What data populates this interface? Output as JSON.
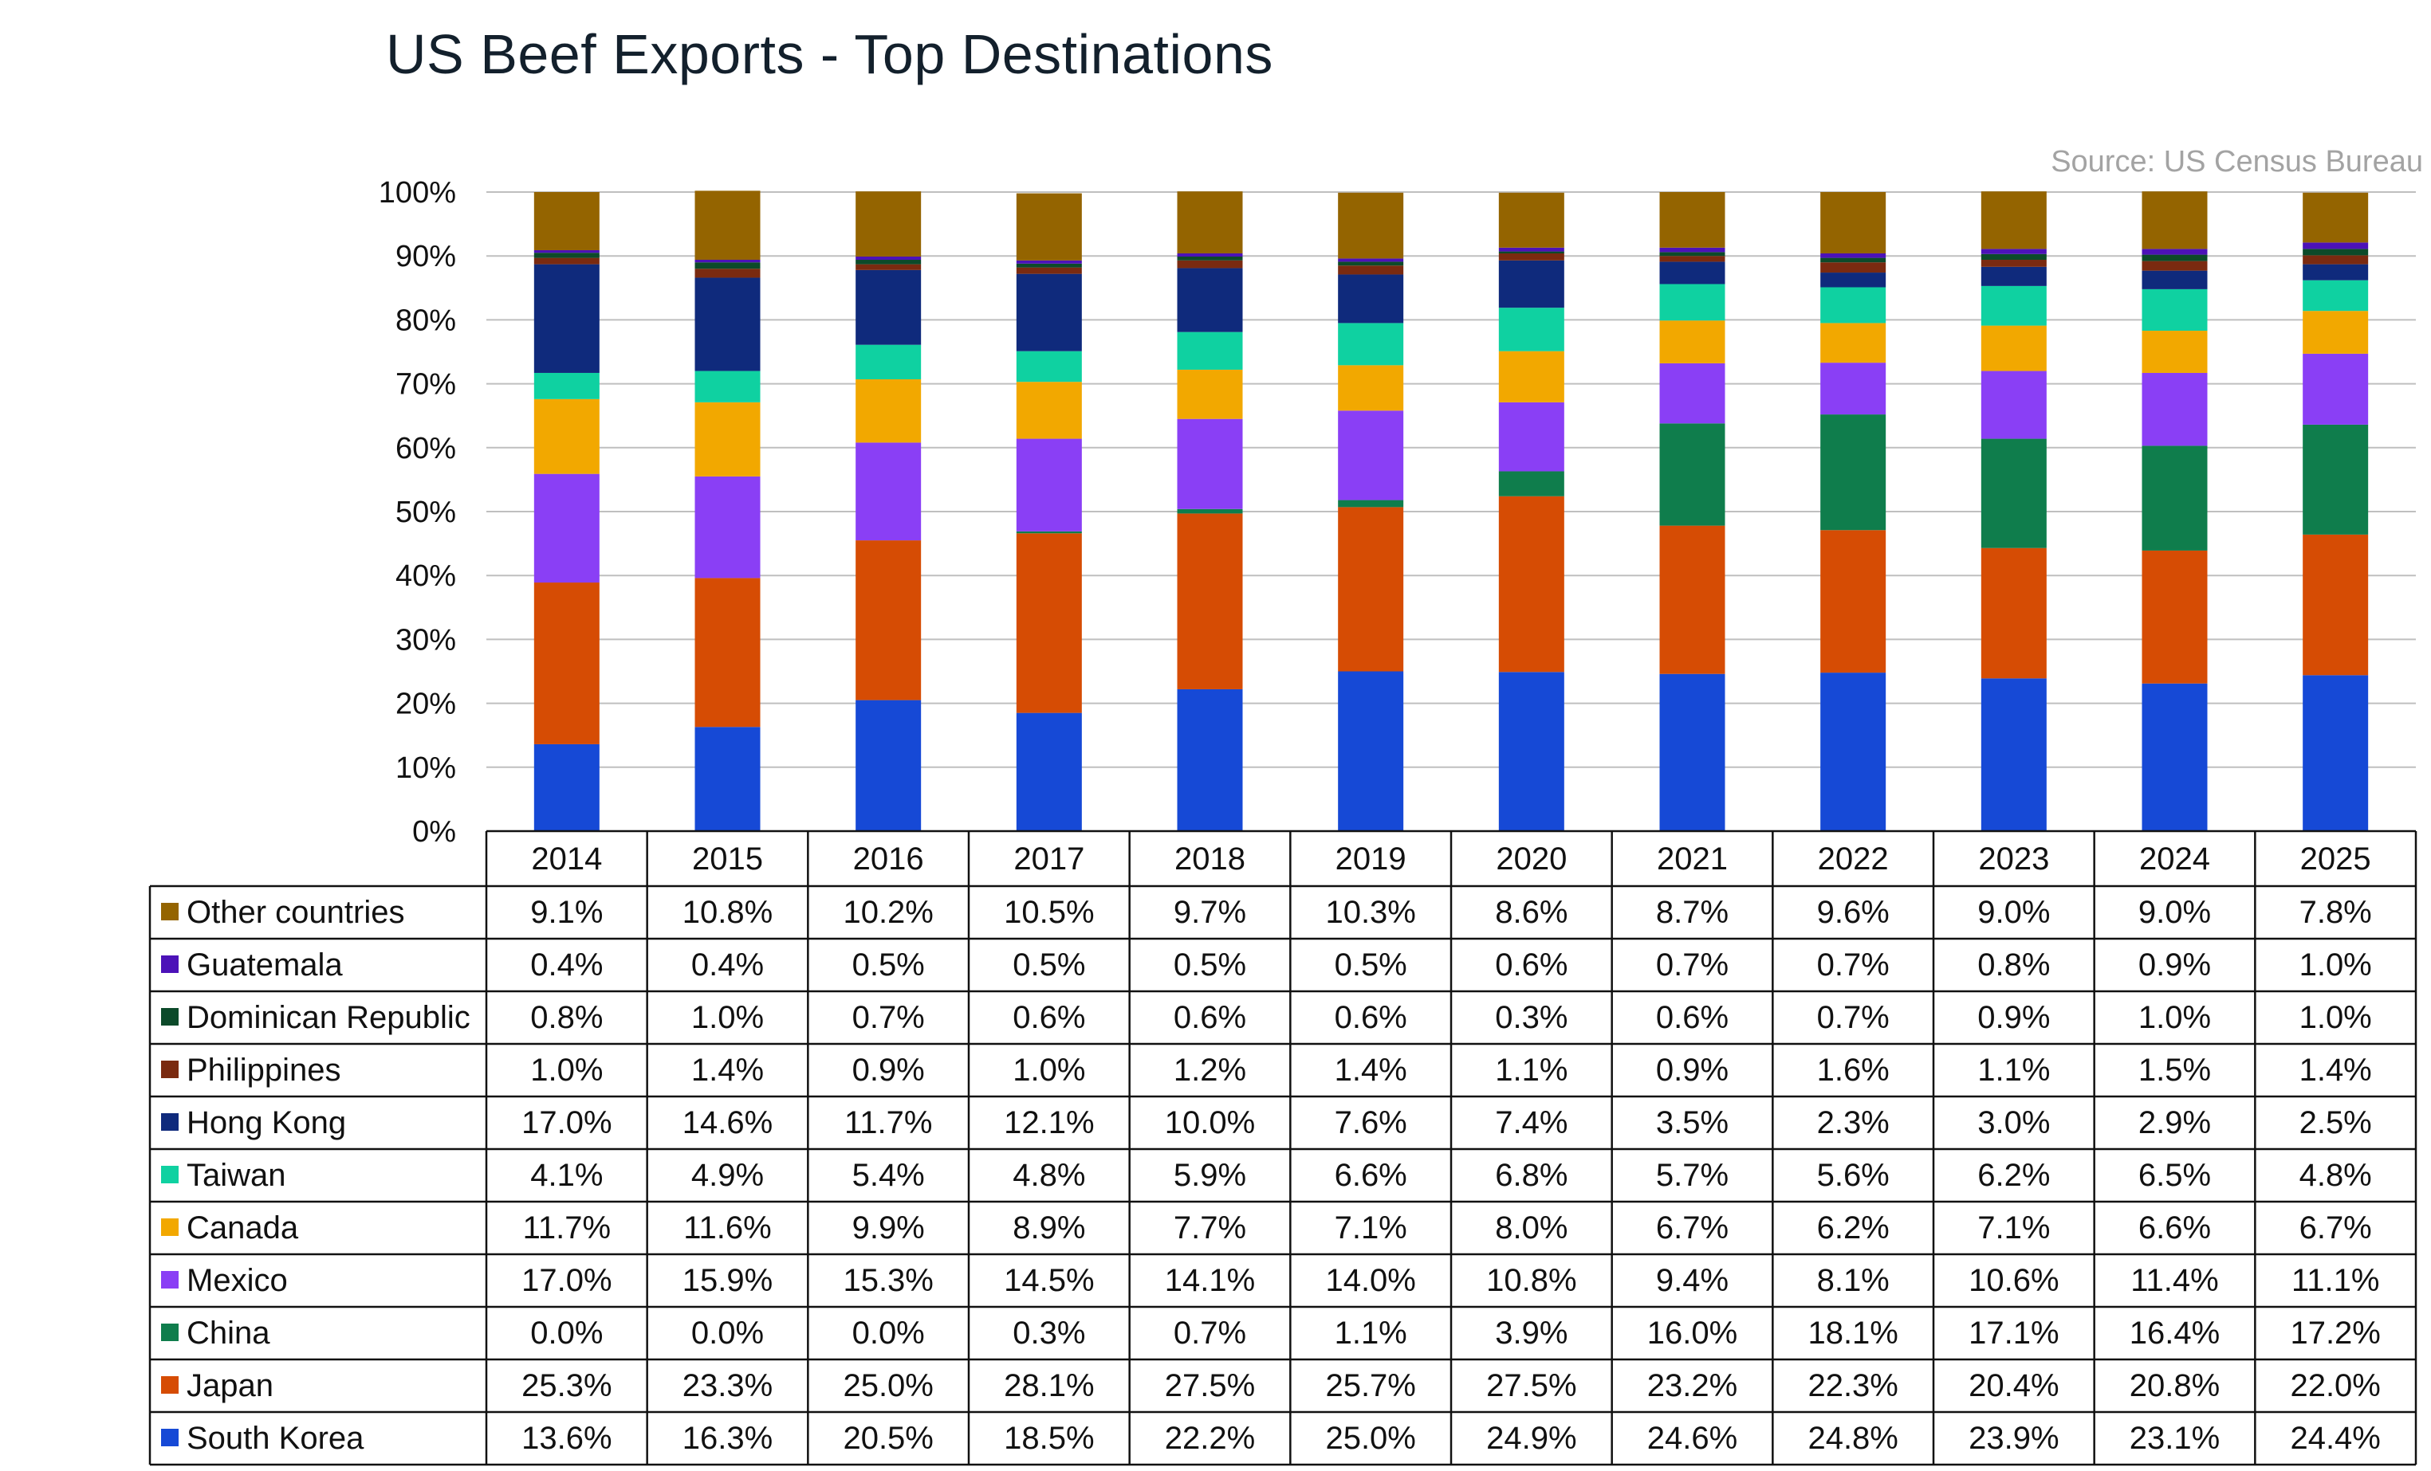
{
  "title": "US Beef Exports - Top Destinations",
  "source": "Source: US Census Bureau",
  "chart_data": {
    "type": "bar",
    "stacked": true,
    "normalized": true,
    "title": "US Beef Exports - Top Destinations",
    "source": "Source: US Census Bureau",
    "categories": [
      "2014",
      "2015",
      "2016",
      "2017",
      "2018",
      "2019",
      "2020",
      "2021",
      "2022",
      "2023",
      "2024",
      "2025"
    ],
    "ylim": [
      0,
      100
    ],
    "yticks": [
      "0%",
      "10%",
      "20%",
      "30%",
      "40%",
      "50%",
      "60%",
      "70%",
      "80%",
      "90%",
      "100%"
    ],
    "grid": true,
    "legend": "data table below chart",
    "series": [
      {
        "name": "South Korea",
        "color": "#1649d6",
        "values": [
          13.6,
          16.3,
          20.5,
          18.5,
          22.2,
          25.0,
          24.9,
          24.6,
          24.8,
          23.9,
          23.1,
          24.4
        ],
        "labels": [
          "13.6%",
          "16.3%",
          "20.5%",
          "18.5%",
          "22.2%",
          "25.0%",
          "24.9%",
          "24.6%",
          "24.8%",
          "23.9%",
          "23.1%",
          "24.4%"
        ]
      },
      {
        "name": "Japan",
        "color": "#d64c04",
        "values": [
          25.3,
          23.3,
          25.0,
          28.1,
          27.5,
          25.7,
          27.5,
          23.2,
          22.3,
          20.4,
          20.8,
          22.0
        ],
        "labels": [
          "25.3%",
          "23.3%",
          "25.0%",
          "28.1%",
          "27.5%",
          "25.7%",
          "27.5%",
          "23.2%",
          "22.3%",
          "20.4%",
          "20.8%",
          "22.0%"
        ]
      },
      {
        "name": "China",
        "color": "#0f7d4c",
        "values": [
          0.0,
          0.0,
          0.0,
          0.3,
          0.7,
          1.1,
          3.9,
          16.0,
          18.1,
          17.1,
          16.4,
          17.2
        ],
        "labels": [
          "0.0%",
          "0.0%",
          "0.0%",
          "0.3%",
          "0.7%",
          "1.1%",
          "3.9%",
          "16.0%",
          "18.1%",
          "17.1%",
          "16.4%",
          "17.2%"
        ]
      },
      {
        "name": "Mexico",
        "color": "#8a3ff5",
        "values": [
          17.0,
          15.9,
          15.3,
          14.5,
          14.1,
          14.0,
          10.8,
          9.4,
          8.1,
          10.6,
          11.4,
          11.1
        ],
        "labels": [
          "17.0%",
          "15.9%",
          "15.3%",
          "14.5%",
          "14.1%",
          "14.0%",
          "10.8%",
          "9.4%",
          "8.1%",
          "10.6%",
          "11.4%",
          "11.1%"
        ]
      },
      {
        "name": "Canada",
        "color": "#f2a800",
        "values": [
          11.7,
          11.6,
          9.9,
          8.9,
          7.7,
          7.1,
          8.0,
          6.7,
          6.2,
          7.1,
          6.6,
          6.7
        ],
        "labels": [
          "11.7%",
          "11.6%",
          "9.9%",
          "8.9%",
          "7.7%",
          "7.1%",
          "8.0%",
          "6.7%",
          "6.2%",
          "7.1%",
          "6.6%",
          "6.7%"
        ]
      },
      {
        "name": "Taiwan",
        "color": "#0fd1a1",
        "values": [
          4.1,
          4.9,
          5.4,
          4.8,
          5.9,
          6.6,
          6.8,
          5.7,
          5.6,
          6.2,
          6.5,
          4.8
        ],
        "labels": [
          "4.1%",
          "4.9%",
          "5.4%",
          "4.8%",
          "5.9%",
          "6.6%",
          "6.8%",
          "5.7%",
          "5.6%",
          "6.2%",
          "6.5%",
          "4.8%"
        ]
      },
      {
        "name": "Hong Kong",
        "color": "#0f2a7c",
        "values": [
          17.0,
          14.6,
          11.7,
          12.1,
          10.0,
          7.6,
          7.4,
          3.5,
          2.3,
          3.0,
          2.9,
          2.5
        ],
        "labels": [
          "17.0%",
          "14.6%",
          "11.7%",
          "12.1%",
          "10.0%",
          "7.6%",
          "7.4%",
          "3.5%",
          "2.3%",
          "3.0%",
          "2.9%",
          "2.5%"
        ]
      },
      {
        "name": "Philippines",
        "color": "#7a2a10",
        "values": [
          1.0,
          1.4,
          0.9,
          1.0,
          1.2,
          1.4,
          1.1,
          0.9,
          1.6,
          1.1,
          1.5,
          1.4
        ],
        "labels": [
          "1.0%",
          "1.4%",
          "0.9%",
          "1.0%",
          "1.2%",
          "1.4%",
          "1.1%",
          "0.9%",
          "1.6%",
          "1.1%",
          "1.5%",
          "1.4%"
        ]
      },
      {
        "name": "Dominican Republic",
        "color": "#0c4a2a",
        "values": [
          0.8,
          1.0,
          0.7,
          0.6,
          0.6,
          0.6,
          0.3,
          0.6,
          0.7,
          0.9,
          1.0,
          1.0
        ],
        "labels": [
          "0.8%",
          "1.0%",
          "0.7%",
          "0.6%",
          "0.6%",
          "0.6%",
          "0.3%",
          "0.6%",
          "0.7%",
          "0.9%",
          "1.0%",
          "1.0%"
        ]
      },
      {
        "name": "Guatemala",
        "color": "#4c12b8",
        "values": [
          0.4,
          0.4,
          0.5,
          0.5,
          0.5,
          0.5,
          0.6,
          0.7,
          0.7,
          0.8,
          0.9,
          1.0
        ],
        "labels": [
          "0.4%",
          "0.4%",
          "0.5%",
          "0.5%",
          "0.5%",
          "0.5%",
          "0.6%",
          "0.7%",
          "0.7%",
          "0.8%",
          "0.9%",
          "1.0%"
        ]
      },
      {
        "name": "Other countries",
        "color": "#946400",
        "values": [
          9.1,
          10.8,
          10.2,
          10.5,
          9.7,
          10.3,
          8.6,
          8.7,
          9.6,
          9.0,
          9.0,
          7.8
        ],
        "labels": [
          "9.1%",
          "10.8%",
          "10.2%",
          "10.5%",
          "9.7%",
          "10.3%",
          "8.6%",
          "8.7%",
          "9.6%",
          "9.0%",
          "9.0%",
          "7.8%"
        ]
      }
    ]
  }
}
